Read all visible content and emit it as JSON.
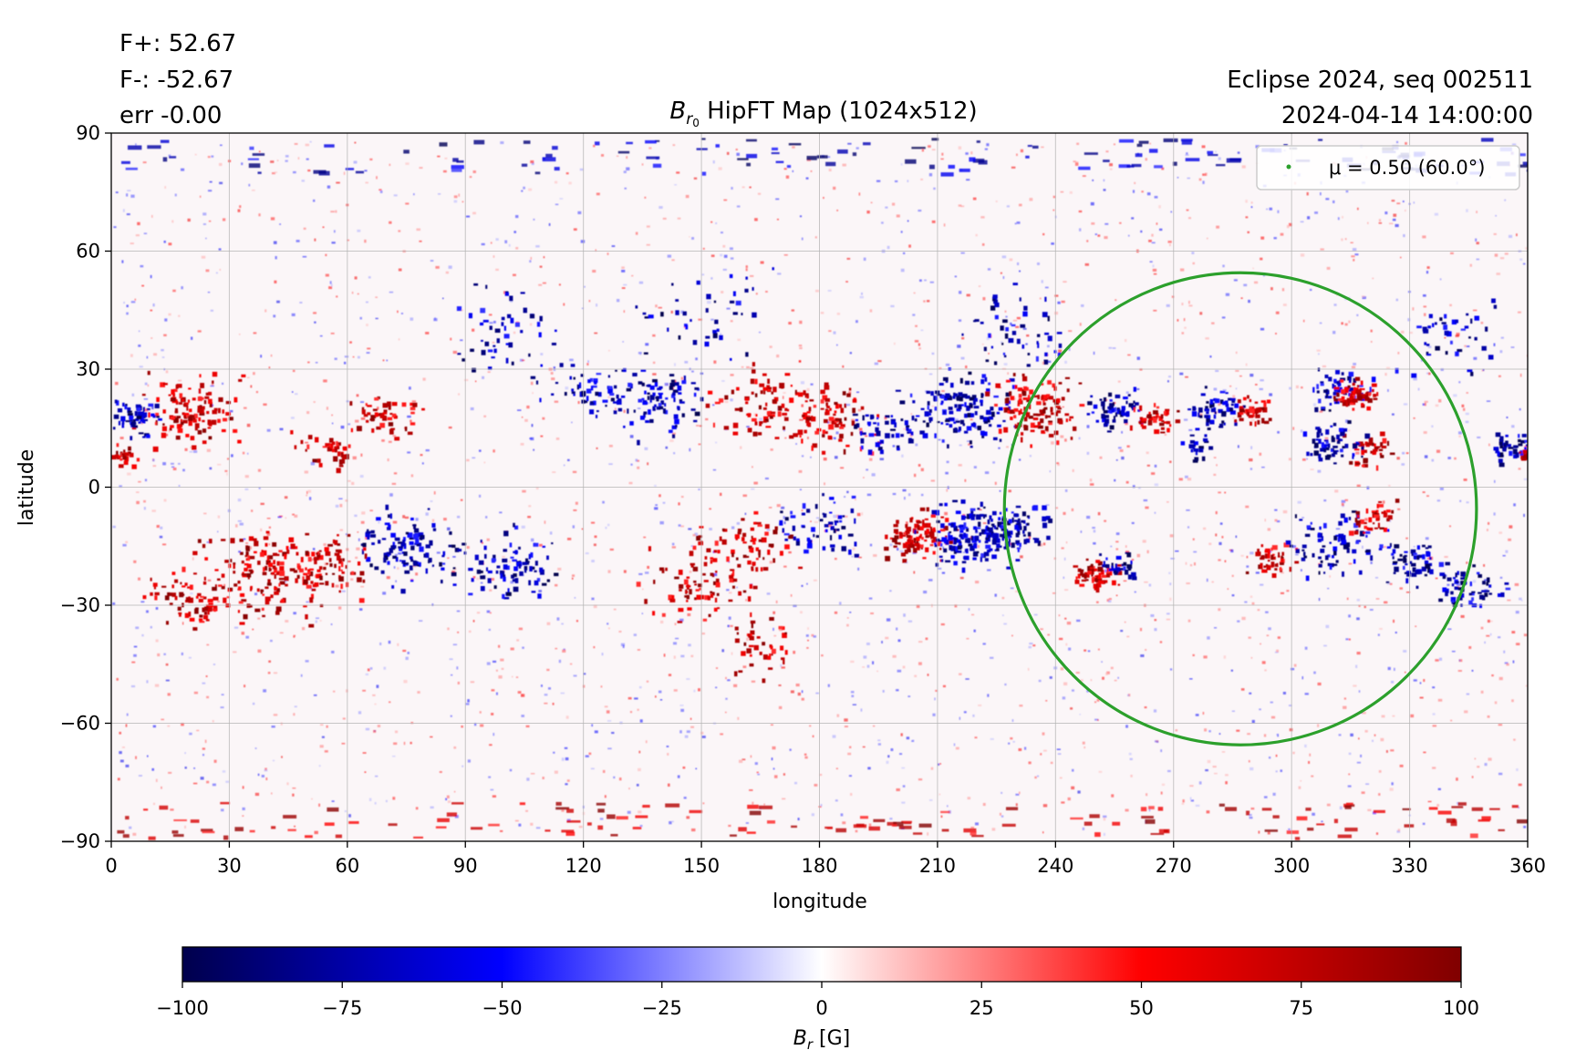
{
  "header": {
    "stats": [
      "F+: 52.67",
      "F-: -52.67",
      "err -0.00"
    ],
    "title_prefix": "B",
    "title_sub": "r",
    "title_subsub": "0",
    "title_rest": " HipFT Map (1024x512)",
    "info": [
      "Eclipse 2024, seq 002511",
      "2024-04-14 14:00:00"
    ]
  },
  "chart_data": {
    "type": "heatmap",
    "title": "Br0 HipFT Map (1024x512)",
    "xlabel": "longitude",
    "ylabel": "latitude",
    "xlim": [
      0,
      360
    ],
    "ylim": [
      -90,
      90
    ],
    "xticks": [
      0,
      30,
      60,
      90,
      120,
      150,
      180,
      210,
      240,
      270,
      300,
      330,
      360
    ],
    "yticks": [
      90,
      60,
      30,
      0,
      -30,
      -60,
      -90
    ],
    "grid": true,
    "legend": {
      "placement": "upper-right",
      "label": "μ = 0.50 (60.0°)",
      "color": "#2ca02c"
    },
    "mu_contour": {
      "center_lon": 287,
      "center_lat": -5.5,
      "half_width_lon": 60,
      "half_height_lat": 60
    },
    "colorbar": {
      "label_main": "B",
      "label_sub": "r",
      "label_unit": " [G]",
      "range": [
        -100,
        100
      ],
      "ticks": [
        "−100",
        "−75",
        "−50",
        "−25",
        "0",
        "25",
        "50",
        "75",
        "100"
      ],
      "colormap": "seismic",
      "stops": [
        "#00004c",
        "#0000ff",
        "#ffffff",
        "#ff0000",
        "#800000"
      ]
    }
  }
}
